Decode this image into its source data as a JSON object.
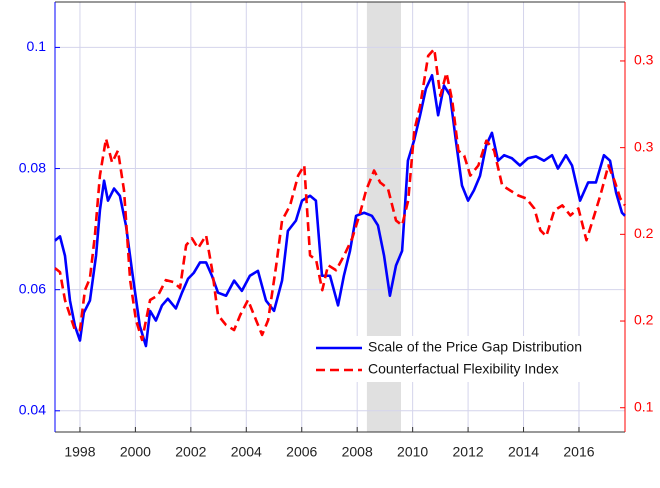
{
  "chart_data": {
    "type": "line",
    "xlim": [
      1997.1,
      2017.66
    ],
    "xticks": [
      1998,
      2000,
      2002,
      2004,
      2006,
      2008,
      2010,
      2012,
      2014,
      2016
    ],
    "ylim": [
      0.0365,
      0.1075
    ],
    "yticks": [
      0.04,
      0.06,
      0.08,
      0.1
    ],
    "y2lim": [
      0.086,
      0.334
    ],
    "y2ticks": [
      0.1,
      {
        "value": 0.15,
        "label": "0.2"
      },
      0.2,
      {
        "value": 0.25,
        "label": "0.3"
      },
      0.3
    ],
    "y_color": "#0000ff",
    "y2_color": "#ff0000",
    "grid": true,
    "legend": "lower right",
    "shaded_region": [
      2008.35,
      2009.58
    ],
    "series": [
      {
        "name": "Scale of the Price Gap Distribution",
        "color": "#0000ff",
        "axis": "y",
        "x": [
          1997.1,
          1997.28,
          1997.46,
          1997.64,
          1997.82,
          1998.0,
          1998.14,
          1998.36,
          1998.58,
          1998.72,
          1998.87,
          1999.01,
          1999.23,
          1999.44,
          1999.66,
          1999.88,
          2000.16,
          2000.38,
          2000.53,
          2000.74,
          2000.96,
          2001.17,
          2001.46,
          2001.68,
          2001.9,
          2002.11,
          2002.33,
          2002.55,
          2002.76,
          2002.98,
          2003.27,
          2003.56,
          2003.84,
          2004.13,
          2004.42,
          2004.71,
          2005.0,
          2005.29,
          2005.5,
          2005.79,
          2006.01,
          2006.3,
          2006.51,
          2006.73,
          2007.02,
          2007.31,
          2007.52,
          2007.74,
          2007.96,
          2008.25,
          2008.53,
          2008.75,
          2008.97,
          2009.18,
          2009.4,
          2009.62,
          2009.83,
          2010.05,
          2010.27,
          2010.48,
          2010.7,
          2010.92,
          2011.13,
          2011.35,
          2011.56,
          2011.78,
          2012.0,
          2012.21,
          2012.43,
          2012.65,
          2012.86,
          2013.08,
          2013.3,
          2013.58,
          2013.87,
          2014.16,
          2014.45,
          2014.74,
          2015.03,
          2015.24,
          2015.53,
          2015.75,
          2016.04,
          2016.33,
          2016.61,
          2016.9,
          2017.12,
          2017.34,
          2017.55,
          2017.66
        ],
        "values": [
          0.0681,
          0.0688,
          0.0656,
          0.0582,
          0.054,
          0.0516,
          0.0562,
          0.0582,
          0.0656,
          0.0731,
          0.078,
          0.0747,
          0.0767,
          0.0755,
          0.0706,
          0.0631,
          0.054,
          0.0507,
          0.0565,
          0.0549,
          0.0574,
          0.0585,
          0.0569,
          0.0595,
          0.0618,
          0.0628,
          0.0645,
          0.0645,
          0.0623,
          0.0595,
          0.059,
          0.0615,
          0.0598,
          0.0623,
          0.0631,
          0.0582,
          0.0565,
          0.0615,
          0.0697,
          0.0714,
          0.0747,
          0.0755,
          0.0747,
          0.0623,
          0.0623,
          0.0574,
          0.0623,
          0.0664,
          0.0722,
          0.0727,
          0.0722,
          0.0706,
          0.0656,
          0.059,
          0.064,
          0.0664,
          0.0813,
          0.0846,
          0.0888,
          0.0932,
          0.0954,
          0.0888,
          0.0937,
          0.0921,
          0.0846,
          0.0772,
          0.0747,
          0.0764,
          0.0788,
          0.0838,
          0.0859,
          0.0813,
          0.0822,
          0.0817,
          0.0805,
          0.0817,
          0.082,
          0.0813,
          0.0822,
          0.08,
          0.0822,
          0.0805,
          0.0747,
          0.0777,
          0.0777,
          0.0822,
          0.0813,
          0.076,
          0.0727,
          0.0722
        ]
      },
      {
        "name": "Counterfactual Flexibility Index",
        "color": "#ff0000",
        "axis": "y2",
        "x": [
          1997.1,
          1997.28,
          1997.46,
          1997.64,
          1997.82,
          1998.0,
          1998.18,
          1998.36,
          1998.54,
          1998.72,
          1998.94,
          1999.16,
          1999.37,
          1999.59,
          1999.81,
          2000.02,
          2000.24,
          2000.53,
          2000.82,
          2001.1,
          2001.39,
          2001.61,
          2001.83,
          2002.04,
          2002.26,
          2002.55,
          2002.77,
          2002.98,
          2003.27,
          2003.56,
          2003.78,
          2004.06,
          2004.35,
          2004.57,
          2004.79,
          2005.08,
          2005.29,
          2005.58,
          2005.87,
          2006.09,
          2006.3,
          2006.52,
          2006.74,
          2006.95,
          2007.24,
          2007.53,
          2007.82,
          2008.11,
          2008.32,
          2008.61,
          2008.83,
          2009.11,
          2009.4,
          2009.62,
          2009.84,
          2010.06,
          2010.27,
          2010.56,
          2010.78,
          2011.0,
          2011.22,
          2011.43,
          2011.65,
          2011.86,
          2012.08,
          2012.37,
          2012.66,
          2012.94,
          2013.23,
          2013.52,
          2013.81,
          2014.1,
          2014.39,
          2014.61,
          2014.82,
          2015.11,
          2015.4,
          2015.69,
          2015.98,
          2016.27,
          2016.55,
          2016.77,
          2017.06,
          2017.28,
          2017.49,
          2017.66
        ],
        "values": [
          0.1805,
          0.1782,
          0.1621,
          0.1534,
          0.1448,
          0.1448,
          0.1678,
          0.1747,
          0.1994,
          0.2339,
          0.2552,
          0.2414,
          0.2483,
          0.2253,
          0.1736,
          0.1506,
          0.1391,
          0.1621,
          0.1649,
          0.1736,
          0.1724,
          0.169,
          0.1937,
          0.1977,
          0.192,
          0.1994,
          0.1793,
          0.1534,
          0.1477,
          0.1448,
          0.1534,
          0.1621,
          0.1506,
          0.142,
          0.1506,
          0.1822,
          0.208,
          0.2167,
          0.2339,
          0.2397,
          0.1879,
          0.1851,
          0.1678,
          0.1822,
          0.1793,
          0.1879,
          0.1977,
          0.2126,
          0.2253,
          0.2368,
          0.2299,
          0.2264,
          0.208,
          0.2052,
          0.2195,
          0.2598,
          0.2741,
          0.3029,
          0.3069,
          0.2799,
          0.2931,
          0.277,
          0.2483,
          0.2454,
          0.2339,
          0.2397,
          0.254,
          0.2483,
          0.2282,
          0.2253,
          0.2224,
          0.2207,
          0.2149,
          0.2023,
          0.1989,
          0.2138,
          0.2167,
          0.2109,
          0.2149,
          0.1966,
          0.2109,
          0.2224,
          0.2397,
          0.231,
          0.2207,
          0.2167
        ]
      }
    ]
  }
}
